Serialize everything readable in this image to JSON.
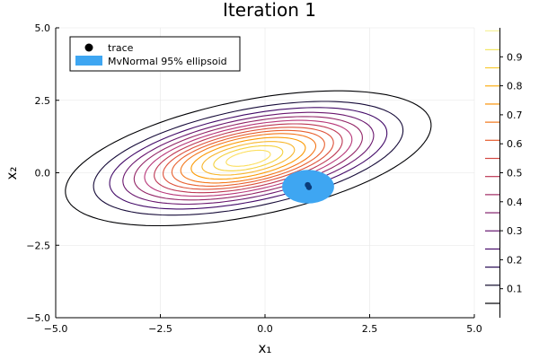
{
  "chart_data": {
    "type": "contour",
    "title": "Iteration 1",
    "xlabel": "x₁",
    "ylabel": "x₂",
    "xlim": [
      -5,
      5
    ],
    "ylim": [
      -5,
      5
    ],
    "xticks": [
      -5,
      -2.5,
      0,
      2.5,
      5
    ],
    "yticks": [
      -5,
      -2.5,
      0,
      2.5,
      5
    ],
    "xtick_labels": [
      "−5.0",
      "−2.5",
      "0.0",
      "2.5",
      "5.0"
    ],
    "ytick_labels": [
      "−5.0",
      "−2.5",
      "0.0",
      "2.5",
      "5.0"
    ],
    "grid": true,
    "legend_position": "top-left",
    "legend": [
      {
        "label": "trace",
        "type": "marker",
        "color": "#000000"
      },
      {
        "label": "MvNormal 95% ellipsoid",
        "type": "patch",
        "color": "#3ea6f2"
      }
    ],
    "contour_center": [
      -0.4,
      0.5
    ],
    "contour_rotation_deg": 18,
    "contours": [
      {
        "level": 0.05,
        "a": 4.55,
        "b": 1.95,
        "color": "#000004"
      },
      {
        "level": 0.1,
        "a": 3.85,
        "b": 1.64,
        "color": "#160b39"
      },
      {
        "level": 0.15,
        "a": 3.45,
        "b": 1.46,
        "color": "#420a68"
      },
      {
        "level": 0.2,
        "a": 3.12,
        "b": 1.32,
        "color": "#6a176e"
      },
      {
        "level": 0.25,
        "a": 2.84,
        "b": 1.2,
        "color": "#932667"
      },
      {
        "level": 0.3,
        "a": 2.58,
        "b": 1.09,
        "color": "#b73779"
      },
      {
        "level": 0.35,
        "a": 2.34,
        "b": 0.99,
        "color": "#bc3754"
      },
      {
        "level": 0.4,
        "a": 2.12,
        "b": 0.89,
        "color": "#dd513a"
      },
      {
        "level": 0.45,
        "a": 1.9,
        "b": 0.8,
        "color": "#e8602f"
      },
      {
        "level": 0.5,
        "a": 1.68,
        "b": 0.71,
        "color": "#f3771a"
      },
      {
        "level": 0.6,
        "a": 1.42,
        "b": 0.6,
        "color": "#fb9b06"
      },
      {
        "level": 0.7,
        "a": 1.15,
        "b": 0.48,
        "color": "#f7b62c"
      },
      {
        "level": 0.8,
        "a": 0.86,
        "b": 0.36,
        "color": "#f4d13d"
      },
      {
        "level": 0.9,
        "a": 0.55,
        "b": 0.23,
        "color": "#fcdf5e"
      }
    ],
    "trace": [
      {
        "x": 1.02,
        "y": -0.42
      },
      {
        "x": 1.05,
        "y": -0.5
      }
    ],
    "ellipsoid": {
      "cx": 1.03,
      "cy": -0.48,
      "rx": 0.62,
      "ry": 0.58,
      "color": "#3ea6f2"
    },
    "colorbar": {
      "range": [
        0,
        1
      ],
      "ticks": [
        0.1,
        0.2,
        0.3,
        0.4,
        0.5,
        0.6,
        0.7,
        0.8,
        0.9
      ],
      "tick_labels": [
        "0.1",
        "0.2",
        "0.3",
        "0.4",
        "0.5",
        "0.6",
        "0.7",
        "0.8",
        "0.9"
      ],
      "levels": [
        {
          "v": 0.0,
          "color": "#000004"
        },
        {
          "v": 0.0625,
          "color": "#0d0829"
        },
        {
          "v": 0.125,
          "color": "#280b54"
        },
        {
          "v": 0.1875,
          "color": "#470b6a"
        },
        {
          "v": 0.25,
          "color": "#65156e"
        },
        {
          "v": 0.3125,
          "color": "#82206c"
        },
        {
          "v": 0.375,
          "color": "#9f2a63"
        },
        {
          "v": 0.4375,
          "color": "#bc3754"
        },
        {
          "v": 0.5,
          "color": "#d44842"
        },
        {
          "v": 0.5625,
          "color": "#e65d2f"
        },
        {
          "v": 0.625,
          "color": "#f3771a"
        },
        {
          "v": 0.6875,
          "color": "#fa9207"
        },
        {
          "v": 0.75,
          "color": "#fcae12"
        },
        {
          "v": 0.8125,
          "color": "#f9cb35"
        },
        {
          "v": 0.875,
          "color": "#f2e661"
        },
        {
          "v": 0.94,
          "color": "#f6f19a"
        }
      ]
    }
  }
}
